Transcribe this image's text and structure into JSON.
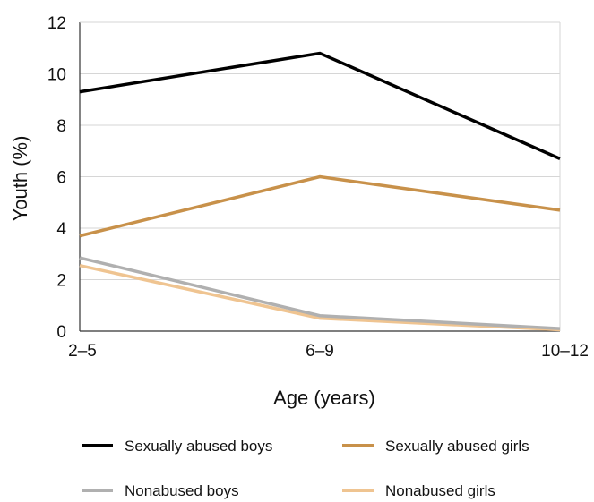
{
  "chart_data": {
    "type": "line",
    "title": "",
    "xlabel": "Age (years)",
    "ylabel": "Youth (%)",
    "categories": [
      "2–5",
      "6–9",
      "10–12"
    ],
    "ylim": [
      0,
      12
    ],
    "yticks": [
      0,
      2,
      4,
      6,
      8,
      10,
      12
    ],
    "grid": true,
    "legend_position": "bottom",
    "series": [
      {
        "name": "Sexually abused boys",
        "color": "#000000",
        "values": [
          9.3,
          10.8,
          6.7
        ]
      },
      {
        "name": "Sexually abused girls",
        "color": "#c8914a",
        "values": [
          3.7,
          6.0,
          4.7
        ]
      },
      {
        "name": "Nonabused boys",
        "color": "#b0b0b0",
        "values": [
          2.85,
          0.6,
          0.1
        ]
      },
      {
        "name": "Nonabused girls",
        "color": "#efc491",
        "values": [
          2.55,
          0.5,
          0.05
        ]
      }
    ]
  }
}
